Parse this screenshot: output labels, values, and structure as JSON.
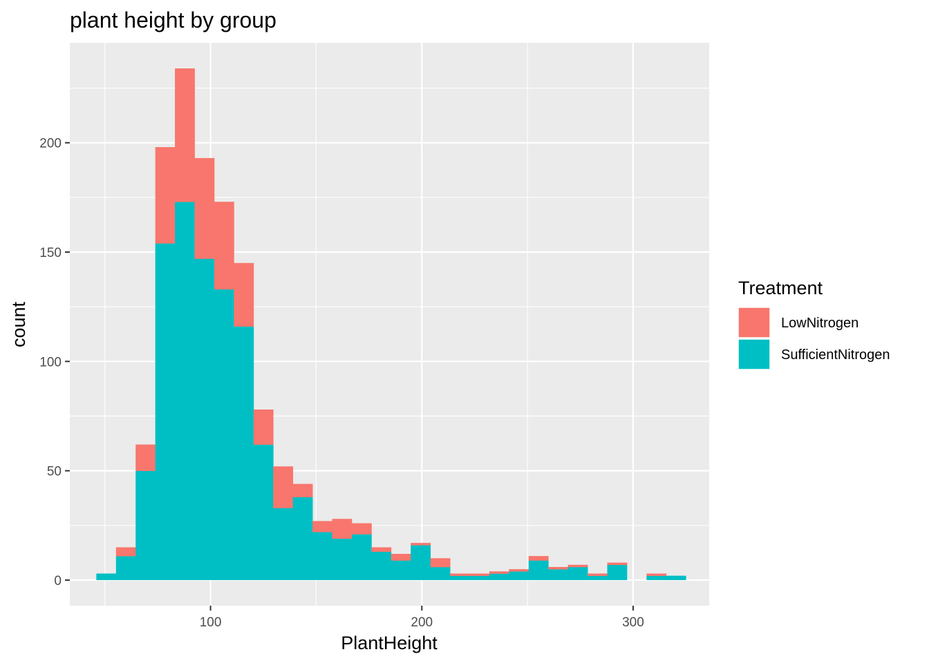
{
  "chart_data": {
    "type": "bar",
    "subtype": "stacked-histogram",
    "title": "plant height by group",
    "xlabel": "PlantHeight",
    "ylabel": "count",
    "xlim": [
      33.4,
      336
    ],
    "ylim": [
      -11.7,
      245.7
    ],
    "x_ticks": [
      100,
      200,
      300
    ],
    "y_ticks": [
      0,
      50,
      100,
      150,
      200
    ],
    "grid": true,
    "bin_width": 9.3,
    "bin_centers": [
      50.6,
      59.9,
      69.2,
      78.5,
      87.8,
      97.1,
      106.4,
      115.7,
      125.0,
      134.3,
      143.6,
      152.9,
      162.2,
      171.5,
      180.8,
      190.1,
      199.4,
      208.7,
      218.0,
      227.3,
      236.6,
      245.9,
      255.2,
      264.5,
      273.8,
      283.1,
      292.4,
      301.7,
      311.0,
      320.3
    ],
    "series": [
      {
        "name": "LowNitrogen",
        "values": [
          0,
          4,
          12,
          44,
          61,
          46,
          40,
          29,
          16,
          19,
          6,
          5,
          9,
          5,
          2,
          3,
          1,
          4,
          1,
          1,
          1,
          1,
          2,
          1,
          1,
          1,
          1,
          0,
          1,
          0
        ]
      },
      {
        "name": "SufficientNitrogen",
        "values": [
          3,
          11,
          50,
          154,
          173,
          147,
          133,
          116,
          62,
          33,
          38,
          22,
          19,
          21,
          13,
          9,
          16,
          6,
          2,
          2,
          3,
          4,
          9,
          5,
          6,
          2,
          7,
          0,
          2,
          2
        ]
      }
    ],
    "legend": {
      "title": "Treatment",
      "position": "right",
      "entries": [
        "LowNitrogen",
        "SufficientNitrogen"
      ]
    },
    "colors": {
      "LowNitrogen": "#F8766D",
      "SufficientNitrogen": "#00BFC4",
      "panel": "#EBEBEB",
      "grid": "#FFFFFF"
    }
  }
}
